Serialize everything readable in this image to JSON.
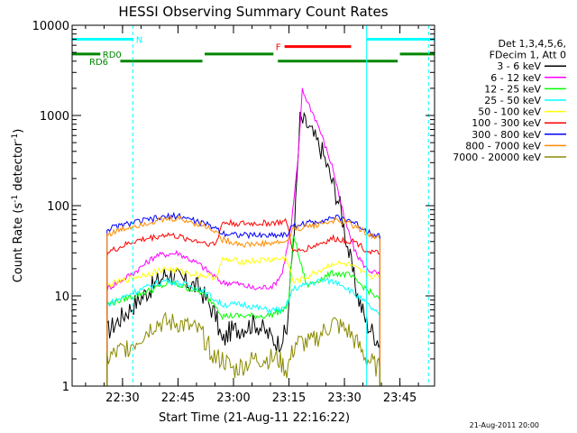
{
  "chart_data": {
    "type": "line",
    "title": "HESSI Observing Summary Count Rates",
    "xlabel": "Start Time (21-Aug-11 22:16:22)",
    "ylabel_main": "Count Rate (s",
    "ylabel_sup1": "-1",
    "ylabel_mid": " detector",
    "ylabel_sup2": "-1",
    "ylabel_end": ")",
    "footer": "21-Aug-2011 20:00",
    "x_range_min": [
      22.2728,
      23.9061
    ],
    "y_range": [
      1,
      10000
    ],
    "y_scale": "log",
    "x_ticks": [
      {
        "min": 22.5,
        "label": "22:30"
      },
      {
        "min": 22.75,
        "label": "22:45"
      },
      {
        "min": 23.0,
        "label": "23:00"
      },
      {
        "min": 23.25,
        "label": "23:15"
      },
      {
        "min": 23.5,
        "label": "23:30"
      },
      {
        "min": 23.75,
        "label": "23:45"
      }
    ],
    "y_ticks": [
      {
        "value": 1,
        "label": "1"
      },
      {
        "value": 10,
        "label": "10"
      },
      {
        "value": 100,
        "label": "100"
      },
      {
        "value": 1000,
        "label": "1000"
      },
      {
        "value": 10000,
        "label": "10000"
      }
    ],
    "legend": {
      "header": [
        "Det 1,3,4,5,6,",
        "FDecim 1, Att 0"
      ],
      "placement": "right"
    },
    "series": [
      {
        "name": "3 - 6 keV",
        "color": "#000000",
        "points": [
          [
            22.43,
            4
          ],
          [
            22.55,
            8
          ],
          [
            22.7,
            18
          ],
          [
            22.85,
            12
          ],
          [
            22.92,
            6
          ],
          [
            22.95,
            3
          ],
          [
            22.98,
            4
          ],
          [
            23.1,
            5
          ],
          [
            23.2,
            3
          ],
          [
            23.24,
            4
          ],
          [
            23.28,
            100
          ],
          [
            23.3,
            900
          ],
          [
            23.33,
            800
          ],
          [
            23.4,
            400
          ],
          [
            23.48,
            100
          ],
          [
            23.52,
            30
          ],
          [
            23.56,
            10
          ],
          [
            23.6,
            5
          ],
          [
            23.66,
            3
          ]
        ]
      },
      {
        "name": "6 - 12 keV",
        "color": "#ff00ff",
        "points": [
          [
            22.43,
            12
          ],
          [
            22.55,
            18
          ],
          [
            22.65,
            28
          ],
          [
            22.75,
            30
          ],
          [
            22.85,
            22
          ],
          [
            22.92,
            16
          ],
          [
            22.95,
            14
          ],
          [
            23.0,
            14
          ],
          [
            23.1,
            12
          ],
          [
            23.18,
            13
          ],
          [
            23.22,
            18
          ],
          [
            23.26,
            60
          ],
          [
            23.29,
            300
          ],
          [
            23.31,
            1900
          ],
          [
            23.33,
            1500
          ],
          [
            23.38,
            800
          ],
          [
            23.45,
            250
          ],
          [
            23.5,
            70
          ],
          [
            23.55,
            30
          ],
          [
            23.6,
            20
          ],
          [
            23.66,
            17
          ]
        ]
      },
      {
        "name": "12 - 25 keV",
        "color": "#00ff00",
        "points": [
          [
            22.43,
            8
          ],
          [
            22.6,
            11
          ],
          [
            22.72,
            14
          ],
          [
            22.85,
            11
          ],
          [
            22.92,
            8
          ],
          [
            22.95,
            6
          ],
          [
            23.05,
            6
          ],
          [
            23.15,
            6
          ],
          [
            23.23,
            7
          ],
          [
            23.25,
            9
          ],
          [
            23.27,
            50
          ],
          [
            23.29,
            30
          ],
          [
            23.33,
            13
          ],
          [
            23.45,
            18
          ],
          [
            23.52,
            17
          ],
          [
            23.58,
            13
          ],
          [
            23.66,
            9
          ]
        ]
      },
      {
        "name": "25 - 50 keV",
        "color": "#00ffff",
        "points": [
          [
            22.43,
            8
          ],
          [
            22.55,
            11
          ],
          [
            22.7,
            15
          ],
          [
            22.85,
            12
          ],
          [
            22.92,
            9
          ],
          [
            22.95,
            8
          ],
          [
            23.05,
            8
          ],
          [
            23.15,
            7
          ],
          [
            23.23,
            7
          ],
          [
            23.27,
            12
          ],
          [
            23.4,
            15
          ],
          [
            23.48,
            14
          ],
          [
            23.58,
            9
          ],
          [
            23.66,
            6
          ]
        ]
      },
      {
        "name": "50 - 100 keV",
        "color": "#ffff00",
        "points": [
          [
            22.43,
            13
          ],
          [
            22.55,
            16
          ],
          [
            22.7,
            20
          ],
          [
            22.85,
            17
          ],
          [
            22.92,
            16
          ],
          [
            22.95,
            25
          ],
          [
            23.05,
            24
          ],
          [
            23.15,
            25
          ],
          [
            23.24,
            26
          ],
          [
            23.27,
            14
          ],
          [
            23.35,
            17
          ],
          [
            23.45,
            23
          ],
          [
            23.52,
            22
          ],
          [
            23.6,
            17
          ],
          [
            23.66,
            16
          ]
        ]
      },
      {
        "name": "100 - 300 keV",
        "color": "#ff0000",
        "points": [
          [
            22.43,
            30
          ],
          [
            22.55,
            40
          ],
          [
            22.7,
            48
          ],
          [
            22.85,
            40
          ],
          [
            22.92,
            37
          ],
          [
            22.95,
            65
          ],
          [
            23.05,
            63
          ],
          [
            23.15,
            64
          ],
          [
            23.24,
            66
          ],
          [
            23.27,
            30
          ],
          [
            23.35,
            35
          ],
          [
            23.45,
            43
          ],
          [
            23.55,
            40
          ],
          [
            23.6,
            32
          ],
          [
            23.66,
            29
          ]
        ]
      },
      {
        "name": "300 - 800 keV",
        "color": "#0000ff",
        "points": [
          [
            22.43,
            55
          ],
          [
            22.55,
            65
          ],
          [
            22.65,
            72
          ],
          [
            22.75,
            78
          ],
          [
            22.85,
            65
          ],
          [
            22.92,
            57
          ],
          [
            22.95,
            50
          ],
          [
            23.05,
            47
          ],
          [
            23.15,
            47
          ],
          [
            23.24,
            48
          ],
          [
            23.27,
            60
          ],
          [
            23.35,
            65
          ],
          [
            23.45,
            74
          ],
          [
            23.52,
            70
          ],
          [
            23.6,
            53
          ],
          [
            23.66,
            45
          ]
        ]
      },
      {
        "name": "800 - 7000 keV",
        "color": "#ff8c00",
        "points": [
          [
            22.43,
            48
          ],
          [
            22.55,
            60
          ],
          [
            22.65,
            68
          ],
          [
            22.75,
            72
          ],
          [
            22.85,
            62
          ],
          [
            22.92,
            53
          ],
          [
            22.95,
            42
          ],
          [
            23.05,
            37
          ],
          [
            23.15,
            38
          ],
          [
            23.24,
            40
          ],
          [
            23.27,
            55
          ],
          [
            23.35,
            60
          ],
          [
            23.45,
            68
          ],
          [
            23.52,
            64
          ],
          [
            23.6,
            50
          ],
          [
            23.66,
            42
          ]
        ]
      },
      {
        "name": "7000 - 20000 keV",
        "color": "#8b8b00",
        "points": [
          [
            22.43,
            2
          ],
          [
            22.55,
            3
          ],
          [
            22.65,
            5
          ],
          [
            22.75,
            5
          ],
          [
            22.85,
            4
          ],
          [
            22.92,
            2
          ],
          [
            22.95,
            2
          ],
          [
            23.0,
            1.5
          ],
          [
            23.1,
            2
          ],
          [
            23.2,
            2
          ],
          [
            23.24,
            1.5
          ],
          [
            23.28,
            3
          ],
          [
            23.35,
            3
          ],
          [
            23.45,
            5
          ],
          [
            23.52,
            4
          ],
          [
            23.6,
            2
          ],
          [
            23.66,
            1.5
          ]
        ]
      }
    ],
    "flag_bars": [
      {
        "label": "N",
        "color": "#00ffff",
        "segments": [
          [
            22.2728,
            22.5465
          ],
          [
            23.6,
            23.9061
          ]
        ],
        "value": 7000,
        "label_at": 22.56
      },
      {
        "label": "RD0",
        "color": "#008800",
        "segments": [
          [
            22.2728,
            22.4
          ],
          [
            22.87,
            23.18
          ],
          [
            23.75,
            23.9061
          ]
        ],
        "value": 4800,
        "label_at": 22.41
      },
      {
        "label": "RD6",
        "color": "#008800",
        "segments": [
          [
            22.49,
            22.86
          ],
          [
            23.2,
            23.74
          ]
        ],
        "value": 4000,
        "label_at": 22.35
      },
      {
        "label": "F",
        "color": "#ff0000",
        "segments": [
          [
            23.23,
            23.53
          ]
        ],
        "value": 5800,
        "label_at": 23.19
      }
    ],
    "vlines": [
      {
        "min": 22.2728,
        "color": "#00ffff",
        "style": "solid"
      },
      {
        "min": 22.5465,
        "color": "#00ffff",
        "style": "dashed"
      },
      {
        "min": 23.6,
        "color": "#00ffff",
        "style": "solid"
      },
      {
        "min": 23.8787,
        "color": "#00ffff",
        "style": "dashed"
      }
    ]
  }
}
